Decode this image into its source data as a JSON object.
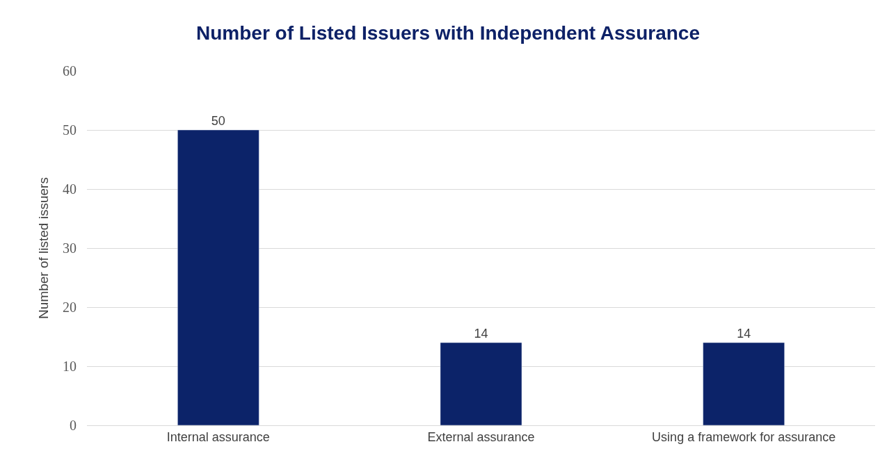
{
  "chart_data": {
    "type": "bar",
    "title": "Number of Listed Issuers with Independent Assurance",
    "ylabel": "Number of listed issuers",
    "categories": [
      "Internal assurance",
      "External assurance",
      "Using a framework for assurance"
    ],
    "values": [
      50,
      14,
      14
    ],
    "color": "#0c2369",
    "ylim": [
      0,
      60
    ],
    "yticks": [
      0,
      10,
      20,
      30,
      40,
      50,
      60
    ],
    "grid": "y",
    "data_labels": true,
    "legend": false
  }
}
